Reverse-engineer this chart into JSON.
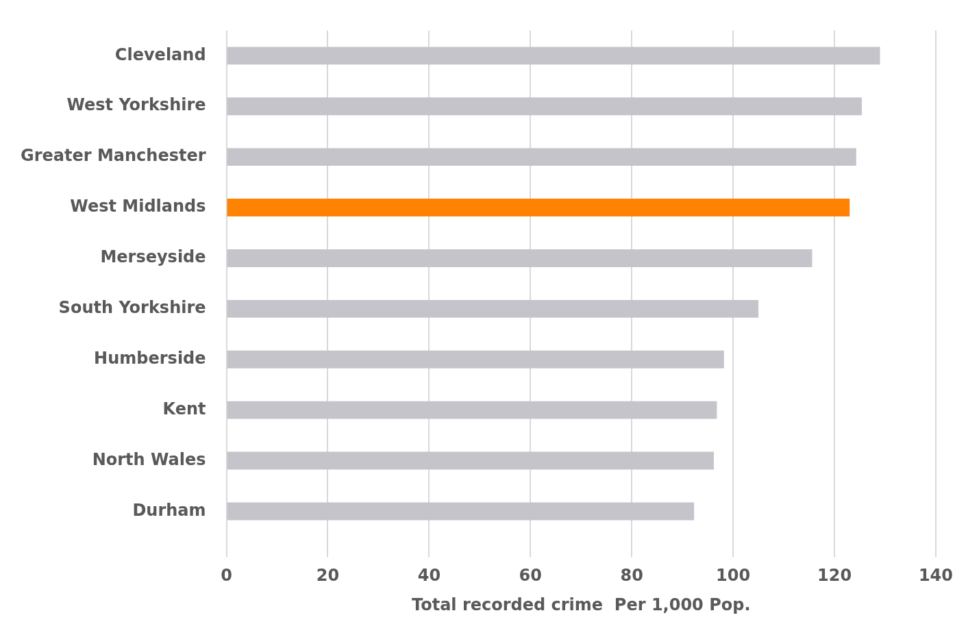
{
  "chart_data": {
    "type": "bar",
    "orientation": "horizontal",
    "xlabel": "Total recorded crime  Per 1,000 Pop.",
    "categories": [
      "Cleveland",
      "West Yorkshire",
      "Greater Manchester",
      "West Midlands",
      "Merseyside",
      "South Yorkshire",
      "Humberside",
      "Kent",
      "North Wales",
      "Durham"
    ],
    "values": [
      129.0,
      125.4,
      124.3,
      123.0,
      115.6,
      105.0,
      98.2,
      96.8,
      96.2,
      92.3
    ],
    "colors": [
      "#c5c4cb",
      "#c5c4cb",
      "#c5c4cb",
      "#ff8300",
      "#c5c4cb",
      "#c5c4cb",
      "#c5c4cb",
      "#c5c4cb",
      "#c5c4cb",
      "#c5c4cb"
    ],
    "xlim": [
      0,
      140
    ],
    "xticks": [
      0,
      20,
      40,
      60,
      80,
      100,
      120,
      140
    ],
    "grid": "x",
    "legend": false
  }
}
